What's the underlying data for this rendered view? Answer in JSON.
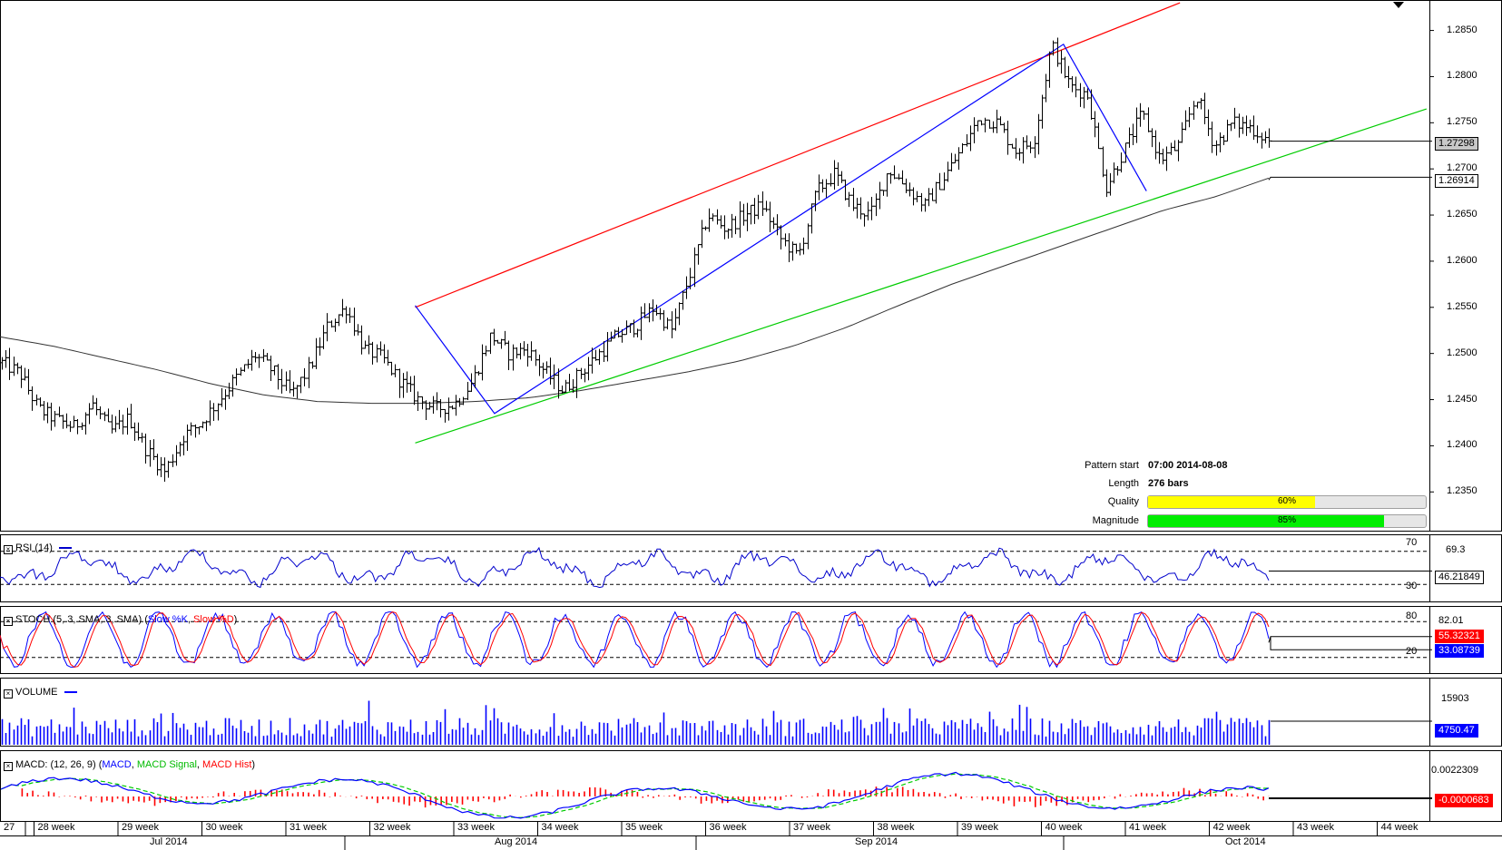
{
  "chart_data": {
    "type": "ohlc",
    "price_axis_ticks": [
      "1.2850",
      "1.2800",
      "1.2750",
      "1.2700",
      "1.2650",
      "1.2600",
      "1.2550",
      "1.2500",
      "1.2450",
      "1.2400",
      "1.2350"
    ],
    "price_min": 1.2308,
    "price_max": 1.2883,
    "last_price": "1.27298",
    "ma_value": "1.26914",
    "week_labels": [
      "27",
      "28 week",
      "29 week",
      "30 week",
      "31 week",
      "32 week",
      "33 week",
      "34 week",
      "35 week",
      "36 week",
      "37 week",
      "38 week",
      "39 week",
      "40 week",
      "41 week",
      "42 week",
      "43 week",
      "44 week"
    ],
    "month_labels": [
      "Jul 2014",
      "Aug 2014",
      "Sep 2014",
      "Oct 2014"
    ],
    "anchor_prices": [
      1.249,
      1.2478,
      1.244,
      1.2428,
      1.242,
      1.2445,
      1.2415,
      1.243,
      1.2395,
      1.2372,
      1.241,
      1.2425,
      1.245,
      1.2475,
      1.2498,
      1.248,
      1.2455,
      1.2485,
      1.253,
      1.255,
      1.2505,
      1.2495,
      1.247,
      1.245,
      1.244,
      1.2445,
      1.247,
      1.252,
      1.25,
      1.2505,
      1.248,
      1.246,
      1.248,
      1.25,
      1.252,
      1.253,
      1.255,
      1.2525,
      1.2585,
      1.265,
      1.2635,
      1.265,
      1.266,
      1.2625,
      1.2605,
      1.2675,
      1.2695,
      1.266,
      1.265,
      1.27,
      1.268,
      1.266,
      1.269,
      1.272,
      1.2755,
      1.275,
      1.272,
      1.273,
      1.2835,
      1.279,
      1.278,
      1.268,
      1.272,
      1.276,
      1.271,
      1.2725,
      1.278,
      1.2725,
      1.275,
      1.2745,
      1.273
    ],
    "ma_anchor_prices": [
      1.2518,
      1.2508,
      1.2495,
      1.2482,
      1.2467,
      1.2455,
      1.2448,
      1.2446,
      1.2446,
      1.2448,
      1.2452,
      1.246,
      1.247,
      1.248,
      1.2492,
      1.2508,
      1.2528,
      1.2552,
      1.2575,
      1.2595,
      1.2615,
      1.2635,
      1.2655,
      1.267,
      1.269
    ],
    "pattern": {
      "resistance": [
        [
          1.255,
          0.2905
        ],
        [
          1.288,
          0.8255
        ]
      ],
      "support": [
        [
          1.2403,
          0.2905
        ],
        [
          1.2765,
          0.998
        ]
      ],
      "zigzag": [
        1.2552,
        1.2435,
        1.2835,
        1.2676
      ],
      "zigzag_pos": [
        0.2905,
        0.346,
        0.744,
        0.802
      ]
    },
    "pattern_info": {
      "start_label": "Pattern start",
      "start_value": "07:00 2014-08-08",
      "length_label": "Length",
      "length_value": "276 bars",
      "quality_label": "Quality",
      "quality": 0.6,
      "quality_text": "60%",
      "magnitude_label": "Magnitude",
      "magnitude": 0.85,
      "magnitude_text": "85%"
    },
    "rsi": {
      "title": "RSI (14)",
      "upper": "70",
      "lower": "30",
      "axis_label": "69.3",
      "value": "46.21849"
    },
    "stoch": {
      "title_prefix": "STOCH (5, 3, SMA, 3, SMA) (",
      "k_label": "Slow %K",
      "sep": ", ",
      "d_label": "Slow %D",
      "title_suffix": ")",
      "upper": "80",
      "lower": "20",
      "axis_label": "82.01",
      "value_d": "55.32321",
      "value_k": "33.08739"
    },
    "volume": {
      "title": "VOLUME",
      "axis_label": "15903",
      "value": "4750.47"
    },
    "macd": {
      "title_prefix": "MACD: (12, 26, 9) (",
      "macd_label": "MACD",
      "sep1": ", ",
      "signal_label": "MACD Signal",
      "sep2": ", ",
      "hist_label": "MACD Hist",
      "title_suffix": ")",
      "axis_label": "0.0022309",
      "value": "-0.0000683"
    },
    "colors": {
      "resistance": "#ff0000",
      "support": "#00cc00",
      "zigzag": "#0000ff",
      "ma": "#333333",
      "price": "#000000",
      "rsi": "#0000cc",
      "stoch_k": "#0000ff",
      "stoch_d": "#ff0000",
      "volume": "#0000ff",
      "macd": "#0000ff",
      "macd_signal": "#00cc00",
      "macd_hist": "#ff0000",
      "quality_fill": "#ffff00",
      "magnitude_fill": "#00ee00",
      "last_price_badge": "#c8c8c8",
      "stoch_d_badge": "#ff0000",
      "stoch_k_badge": "#0000ff",
      "volume_badge": "#0000ff",
      "macd_badge": "#ff0000"
    }
  }
}
